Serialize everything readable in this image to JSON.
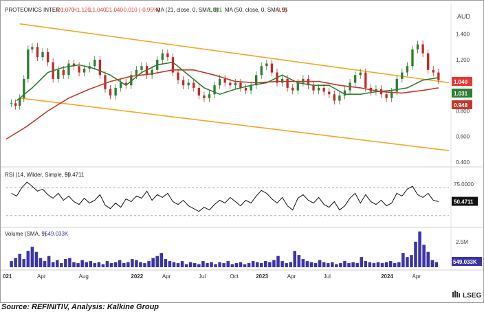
{
  "chart_data": [
    {
      "type": "candlestick",
      "panel": "price",
      "title": "PROTEOMICS INTER",
      "ohlc": {
        "open_label": "O1.070",
        "high_label": "H1.120",
        "low_label": "L1.040",
        "close_label": "C1.040",
        "change_label": "-0.010 (-0.95%)"
      },
      "currency": "AUD",
      "ylim": [
        0.4,
        1.5
      ],
      "yticks": [
        "1.400",
        "1.200",
        "0.800",
        "0.600",
        "0.400"
      ],
      "x_labels": [
        "021",
        "Apr",
        "Aug",
        "2022",
        "Apr",
        "Jul",
        "Oct",
        "2023",
        "Apr",
        "Jul",
        "2024",
        "Apr"
      ],
      "x_label_positions": [
        0,
        3,
        7,
        12,
        15,
        18.5,
        21.5,
        24,
        27,
        30.5,
        36,
        39
      ],
      "x_range_months": [
        -0.5,
        42
      ],
      "close_series": {
        "x_months": [
          0,
          0.4,
          0.8,
          1.2,
          1.6,
          2.0,
          2.5,
          3.0,
          3.5,
          4.0,
          4.5,
          5.0,
          5.5,
          6.0,
          6.5,
          7.0,
          7.5,
          8.0,
          8.5,
          9.0,
          9.5,
          10.0,
          10.5,
          11.0,
          11.5,
          12.0,
          12.5,
          13.0,
          13.5,
          14.0,
          14.5,
          15.0,
          15.5,
          16.0,
          16.5,
          17.0,
          17.5,
          18.0,
          18.5,
          19.0,
          19.5,
          20.0,
          20.5,
          21.0,
          21.5,
          22.0,
          22.5,
          23.0,
          23.5,
          24.0,
          24.5,
          25.0,
          25.5,
          26.0,
          26.5,
          27.0,
          27.5,
          28.0,
          28.5,
          29.0,
          29.5,
          30.0,
          30.5,
          31.0,
          31.5,
          32.0,
          32.5,
          33.0,
          33.5,
          34.0,
          34.5,
          35.0,
          35.5,
          36.0,
          36.5,
          37.0,
          37.5,
          38.0,
          38.5,
          39.0,
          39.5,
          40.0,
          40.5,
          41.0
        ],
        "values": [
          0.86,
          0.84,
          0.9,
          1.05,
          1.28,
          1.3,
          1.22,
          1.26,
          1.18,
          1.05,
          1.12,
          1.08,
          1.17,
          1.15,
          1.1,
          1.13,
          1.15,
          1.2,
          1.08,
          0.97,
          0.92,
          0.98,
          1.02,
          1.0,
          1.08,
          1.12,
          1.15,
          1.08,
          1.12,
          1.2,
          1.25,
          1.22,
          1.1,
          1.04,
          1.0,
          1.02,
          0.98,
          0.92,
          0.9,
          0.93,
          1.0,
          1.05,
          1.02,
          1.0,
          1.02,
          0.98,
          0.96,
          1.0,
          1.08,
          1.15,
          1.17,
          1.1,
          1.02,
          1.05,
          0.98,
          0.96,
          1.02,
          1.05,
          1.0,
          0.96,
          0.98,
          0.95,
          0.93,
          0.88,
          0.92,
          0.96,
          1.02,
          1.08,
          1.1,
          0.98,
          0.95,
          0.97,
          0.93,
          0.9,
          0.95,
          1.05,
          1.1,
          1.15,
          1.28,
          1.32,
          1.25,
          1.12,
          1.1,
          1.04
        ]
      },
      "indicators": [
        {
          "name": "MA (21, close, 0, SMA, 9)",
          "last_value": "1.031",
          "color": "#2e7d32",
          "x_months": [
            0.5,
            2,
            3.5,
            5,
            6.5,
            8,
            9.5,
            11,
            12.5,
            14,
            15.5,
            17,
            18.5,
            20,
            21.5,
            23,
            24.5,
            26,
            27.5,
            29,
            30.5,
            32,
            33.5,
            35,
            36.5,
            38,
            39.5,
            41
          ],
          "values": [
            0.88,
            0.98,
            1.1,
            1.14,
            1.16,
            1.13,
            1.08,
            1.0,
            1.1,
            1.16,
            1.18,
            1.08,
            0.98,
            0.93,
            0.97,
            1.0,
            1.02,
            1.08,
            1.02,
            1.0,
            1.0,
            0.93,
            0.93,
            0.95,
            0.96,
            0.98,
            1.04,
            1.06
          ]
        },
        {
          "name": "MA (50, close, 0, SMA, 9)",
          "last_value": "0.95",
          "color": "#c0392b",
          "x_months": [
            -0.5,
            1.5,
            3.5,
            5.5,
            7.5,
            9.5,
            11.5,
            13.5,
            15.5,
            17.5,
            19.5,
            21.5,
            23.5,
            25.5,
            27.5,
            29.5,
            31.5,
            33.5,
            35.5,
            37.5,
            39.5,
            41
          ],
          "values": [
            0.58,
            0.68,
            0.8,
            0.9,
            0.97,
            1.03,
            1.07,
            1.09,
            1.12,
            1.12,
            1.08,
            1.03,
            1.02,
            1.03,
            1.03,
            1.03,
            1.0,
            0.98,
            0.95,
            0.94,
            0.96,
            0.98
          ]
        }
      ],
      "channel": {
        "color": "#f5a623",
        "upper": {
          "x_months": [
            0.8,
            42
          ],
          "values": [
            1.48,
            1.02
          ]
        },
        "lower": {
          "x_months": [
            0.8,
            42
          ],
          "values": [
            0.9,
            0.49
          ]
        }
      },
      "price_tags": [
        {
          "label": "1.040",
          "color": "#e53935"
        },
        {
          "label": "1.031",
          "color": "#2e7d32"
        },
        {
          "label": "0.948",
          "color": "#c0392b"
        }
      ]
    },
    {
      "type": "line",
      "panel": "rsi",
      "title": "RSI (14, Wilder, Simple, 9)",
      "last_value": "50.4711",
      "ylim": [
        20,
        85
      ],
      "yticks": [
        "75.0000"
      ],
      "reference_lines": [
        70,
        30
      ],
      "x_months": [
        0,
        0.5,
        1.0,
        1.5,
        2.0,
        2.5,
        3.0,
        3.5,
        4.0,
        4.5,
        5.0,
        5.5,
        6.0,
        6.5,
        7.0,
        7.5,
        8.0,
        8.5,
        9.0,
        9.5,
        10.0,
        10.5,
        11.0,
        11.5,
        12.0,
        12.5,
        13.0,
        13.5,
        14.0,
        14.5,
        15.0,
        15.5,
        16.0,
        16.5,
        17.0,
        17.5,
        18.0,
        18.5,
        19.0,
        19.5,
        20.0,
        20.5,
        21.0,
        21.5,
        22.0,
        22.5,
        23.0,
        23.5,
        24.0,
        24.5,
        25.0,
        25.5,
        26.0,
        26.5,
        27.0,
        27.5,
        28.0,
        28.5,
        29.0,
        29.5,
        30.0,
        30.5,
        31.0,
        31.5,
        32.0,
        32.5,
        33.0,
        33.5,
        34.0,
        34.5,
        35.0,
        35.5,
        36.0,
        36.5,
        37.0,
        37.5,
        38.0,
        38.5,
        39.0,
        39.5,
        40.0,
        40.5,
        41.0
      ],
      "values": [
        62,
        58,
        70,
        78,
        72,
        65,
        68,
        60,
        55,
        62,
        52,
        58,
        50,
        46,
        55,
        48,
        52,
        60,
        45,
        40,
        48,
        42,
        54,
        50,
        58,
        55,
        65,
        52,
        60,
        56,
        62,
        50,
        46,
        52,
        44,
        40,
        36,
        42,
        38,
        46,
        52,
        48,
        56,
        50,
        44,
        52,
        48,
        58,
        66,
        62,
        54,
        48,
        56,
        44,
        38,
        55,
        60,
        52,
        48,
        56,
        46,
        42,
        50,
        38,
        44,
        55,
        62,
        48,
        60,
        50,
        46,
        52,
        44,
        48,
        62,
        58,
        68,
        72,
        60,
        56,
        62,
        52,
        50
      ]
    },
    {
      "type": "bar",
      "panel": "volume",
      "title": "Volume (SMA, 9)",
      "last_value": "549.033K",
      "ylim": [
        0,
        3.5
      ],
      "yticks": [
        "2.5M"
      ],
      "unit": "M",
      "x_months": [
        0,
        0.4,
        0.8,
        1.2,
        1.6,
        2.0,
        2.4,
        2.8,
        3.2,
        3.6,
        4.0,
        4.4,
        4.8,
        5.2,
        5.6,
        6.0,
        6.4,
        6.8,
        7.2,
        7.6,
        8.0,
        8.4,
        8.8,
        9.2,
        9.6,
        10.0,
        10.4,
        10.8,
        11.2,
        11.6,
        12.0,
        12.4,
        12.8,
        13.2,
        13.6,
        14.0,
        14.4,
        14.8,
        15.2,
        15.6,
        16.0,
        16.4,
        16.8,
        17.2,
        17.6,
        18.0,
        18.4,
        18.8,
        19.2,
        19.6,
        20.0,
        20.4,
        20.8,
        21.2,
        21.6,
        22.0,
        22.4,
        22.8,
        23.2,
        23.6,
        24.0,
        24.4,
        24.8,
        25.2,
        25.6,
        26.0,
        26.4,
        26.8,
        27.2,
        27.6,
        28.0,
        28.4,
        28.8,
        29.2,
        29.6,
        30.0,
        30.4,
        30.8,
        31.2,
        31.6,
        32.0,
        32.4,
        32.8,
        33.2,
        33.6,
        34.0,
        34.4,
        34.8,
        35.2,
        35.6,
        36.0,
        36.4,
        36.8,
        37.2,
        37.6,
        38.0,
        38.4,
        38.8,
        39.2,
        39.6,
        40.0,
        40.4,
        40.8
      ],
      "values": [
        0.6,
        0.9,
        1.3,
        0.8,
        1.6,
        2.0,
        1.5,
        0.9,
        0.6,
        1.1,
        0.5,
        0.7,
        0.4,
        0.8,
        0.9,
        0.5,
        0.4,
        0.7,
        0.5,
        0.6,
        0.4,
        0.5,
        0.3,
        0.6,
        0.4,
        0.5,
        0.7,
        0.4,
        0.5,
        0.8,
        0.7,
        0.5,
        0.4,
        0.6,
        0.9,
        1.1,
        1.4,
        0.8,
        0.6,
        0.5,
        0.4,
        0.6,
        0.3,
        0.5,
        0.4,
        0.3,
        0.6,
        0.4,
        0.5,
        0.3,
        0.5,
        0.4,
        0.6,
        0.3,
        0.4,
        0.5,
        0.3,
        0.4,
        0.6,
        0.5,
        0.4,
        0.6,
        0.5,
        0.7,
        1.1,
        0.6,
        0.4,
        0.5,
        1.6,
        1.2,
        0.8,
        0.6,
        0.5,
        0.4,
        0.7,
        0.5,
        0.4,
        0.5,
        0.3,
        0.4,
        0.6,
        0.4,
        0.5,
        0.4,
        1.0,
        0.6,
        0.5,
        0.4,
        0.5,
        0.4,
        0.5,
        0.6,
        0.4,
        0.5,
        1.4,
        1.0,
        1.2,
        2.5,
        3.5,
        2.2,
        1.5,
        0.7,
        0.5
      ]
    }
  ],
  "branding": {
    "logo_text": "LSEG",
    "logo_icon": "lseg-logo-icon"
  },
  "caption": "Source: REFINITIV, Analysis: Kalkine Group"
}
